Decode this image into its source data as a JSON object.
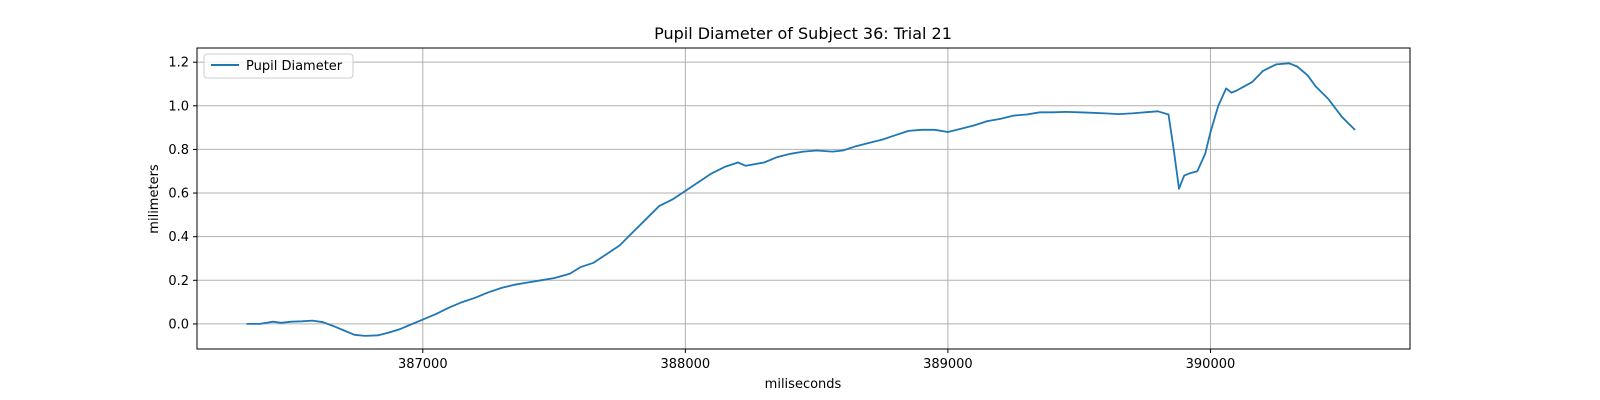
{
  "chart_data": {
    "type": "line",
    "title": "Pupil Diameter of Subject 36: Trial 21",
    "xlabel": "miliseconds",
    "ylabel": "milimeters",
    "xlim": [
      386140,
      390760
    ],
    "ylim": [
      -0.115,
      1.265
    ],
    "xticks": [
      387000,
      388000,
      389000,
      390000
    ],
    "yticks": [
      0.0,
      0.2,
      0.4,
      0.6,
      0.8,
      1.0,
      1.2
    ],
    "xtick_labels": [
      "387000",
      "388000",
      "389000",
      "390000"
    ],
    "ytick_labels": [
      "0.0",
      "0.2",
      "0.4",
      "0.6",
      "0.8",
      "1.0",
      "1.2"
    ],
    "grid": true,
    "legend_position": "top-left",
    "colors": {
      "series": "#1f77b4",
      "grid": "#b0b0b0"
    },
    "series": [
      {
        "name": "Pupil Diameter",
        "x": [
          386330,
          386380,
          386430,
          386460,
          386500,
          386540,
          386580,
          386620,
          386660,
          386700,
          386740,
          386780,
          386830,
          386870,
          386910,
          386950,
          387000,
          387050,
          387100,
          387150,
          387200,
          387250,
          387300,
          387350,
          387400,
          387450,
          387500,
          387560,
          387600,
          387650,
          387700,
          387750,
          387800,
          387850,
          387900,
          387950,
          388000,
          388050,
          388100,
          388150,
          388200,
          388230,
          388300,
          388350,
          388400,
          388450,
          388500,
          388560,
          388600,
          388650,
          388700,
          388750,
          388800,
          388850,
          388900,
          388950,
          389000,
          389050,
          389100,
          389150,
          389200,
          389250,
          389300,
          389350,
          389400,
          389450,
          389500,
          389550,
          389600,
          389650,
          389700,
          389750,
          389800,
          389840,
          389860,
          389880,
          389900,
          389920,
          389950,
          389980,
          390000,
          390030,
          390060,
          390080,
          390100,
          390130,
          390160,
          390200,
          390250,
          390300,
          390330,
          390370,
          390400,
          390450,
          390500,
          390550
        ],
        "values": [
          0.0,
          0.0,
          0.01,
          0.005,
          0.01,
          0.012,
          0.015,
          0.008,
          -0.01,
          -0.03,
          -0.05,
          -0.055,
          -0.052,
          -0.04,
          -0.025,
          -0.005,
          0.02,
          0.045,
          0.075,
          0.1,
          0.12,
          0.145,
          0.165,
          0.18,
          0.19,
          0.2,
          0.21,
          0.23,
          0.26,
          0.28,
          0.32,
          0.36,
          0.42,
          0.48,
          0.54,
          0.57,
          0.61,
          0.65,
          0.69,
          0.72,
          0.74,
          0.725,
          0.74,
          0.765,
          0.78,
          0.79,
          0.795,
          0.79,
          0.795,
          0.815,
          0.83,
          0.845,
          0.865,
          0.885,
          0.89,
          0.89,
          0.88,
          0.895,
          0.91,
          0.93,
          0.94,
          0.955,
          0.96,
          0.97,
          0.97,
          0.972,
          0.97,
          0.968,
          0.965,
          0.962,
          0.965,
          0.97,
          0.975,
          0.96,
          0.8,
          0.62,
          0.68,
          0.69,
          0.7,
          0.78,
          0.88,
          1.0,
          1.08,
          1.06,
          1.07,
          1.09,
          1.11,
          1.16,
          1.19,
          1.195,
          1.18,
          1.14,
          1.09,
          1.03,
          0.95,
          0.89
        ]
      }
    ]
  }
}
